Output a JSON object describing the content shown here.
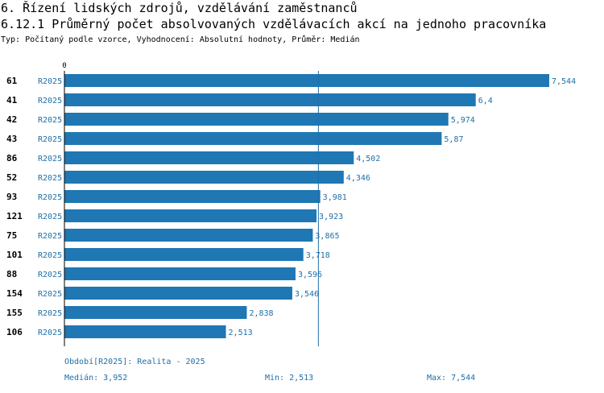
{
  "section_title": "6. Řízení lidských zdrojů, vzdělávání zaměstnanců",
  "chart_title": "6.12.1 Průměrný počet absolvovaných vzdělávacích akcí na jednoho pracovníka",
  "subtitle": "Typ: Počítaný podle vzorce, Vyhodnocení: Absolutní hodnoty, Průměr: Medián",
  "chart_data": {
    "type": "bar",
    "orientation": "horizontal",
    "x_axis_origin_label": "0",
    "xlim": [
      0,
      7.544
    ],
    "reference_line": {
      "name": "Medián",
      "value": 3.952
    },
    "categories": [
      "61",
      "41",
      "42",
      "43",
      "86",
      "52",
      "93",
      "121",
      "75",
      "101",
      "88",
      "154",
      "155",
      "106"
    ],
    "series_labels": [
      "R2025",
      "R2025",
      "R2025",
      "R2025",
      "R2025",
      "R2025",
      "R2025",
      "R2025",
      "R2025",
      "R2025",
      "R2025",
      "R2025",
      "R2025",
      "R2025"
    ],
    "values": [
      7.544,
      6.4,
      5.974,
      5.87,
      4.502,
      4.346,
      3.981,
      3.923,
      3.865,
      3.718,
      3.596,
      3.546,
      2.838,
      2.513
    ],
    "value_labels": [
      "7,544",
      "6,4",
      "5,974",
      "5,87",
      "4,502",
      "4,346",
      "3,981",
      "3,923",
      "3,865",
      "3,718",
      "3,596",
      "3,546",
      "2,838",
      "2,513"
    ],
    "colors": {
      "bar": "#1f77b4",
      "series_label": "#1f6fa8",
      "value_label": "#1f6fa8",
      "reference_line": "#1f6fa8",
      "axis": "#000000"
    }
  },
  "footer": {
    "period": "Období[R2025]: Realita - 2025",
    "median": "Medián: 3,952",
    "min": "Min: 2,513",
    "max": "Max: 7,544"
  }
}
